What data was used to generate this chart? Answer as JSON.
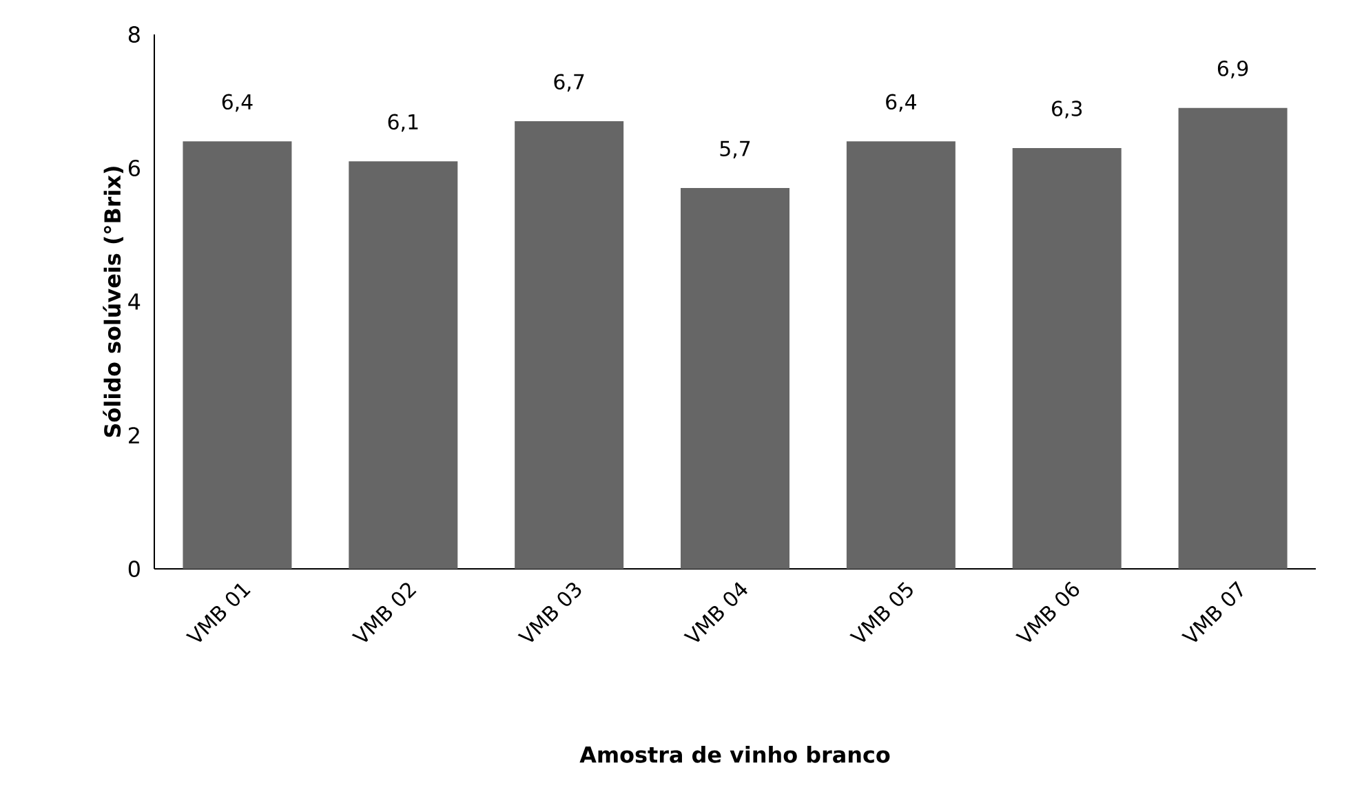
{
  "chart_data": {
    "type": "bar",
    "xlabel": "Amostra de vinho branco",
    "ylabel": "Sólido solúveis (°Brix)",
    "categories": [
      "VMB 01",
      "VMB 02",
      "VMB 03",
      "VMB 04",
      "VMB 05",
      "VMB 06",
      "VMB 07"
    ],
    "values": [
      6.4,
      6.1,
      6.7,
      5.7,
      6.4,
      6.3,
      6.9
    ],
    "value_labels": [
      "6,4",
      "6,1",
      "6,7",
      "5,7",
      "6,4",
      "6,3",
      "6,9"
    ],
    "color": "#666666",
    "ylim": [
      0,
      8
    ],
    "yticks": [
      0,
      2,
      4,
      6,
      8
    ],
    "grid": false
  }
}
